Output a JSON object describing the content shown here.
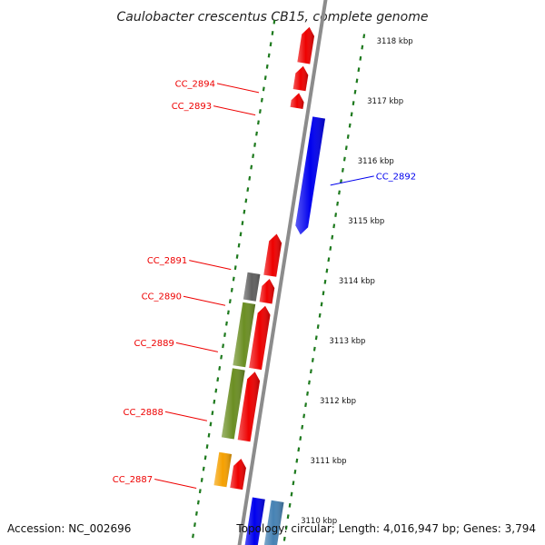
{
  "title": "Caulobacter crescentus CB15, complete genome",
  "footer": {
    "accession": "Accession: NC_002696",
    "summary": "Topology: circular; Length: 4,016,947 bp; Genes: 3,794"
  },
  "colors": {
    "backbone": "#8c8c8c",
    "tick": "#1e7a1e",
    "red": "#ee0000",
    "blue": "#0000ee",
    "olive": "#6b8e23",
    "gray": "#606060",
    "orange": "#f5a000",
    "steelblue": "#4682b4"
  },
  "scale": [
    {
      "label": "3118 kbp",
      "kbp": 3118
    },
    {
      "label": "3117 kbp",
      "kbp": 3117
    },
    {
      "label": "3116 kbp",
      "kbp": 3116
    },
    {
      "label": "3115 kbp",
      "kbp": 3115
    },
    {
      "label": "3114 kbp",
      "kbp": 3114
    },
    {
      "label": "3113 kbp",
      "kbp": 3113
    },
    {
      "label": "3112 kbp",
      "kbp": 3112
    },
    {
      "label": "3111 kbp",
      "kbp": 3111
    },
    {
      "label": "3110 kbp",
      "kbp": 3110
    }
  ],
  "genes": [
    {
      "id": "g-top",
      "label": "",
      "color": "red",
      "strand": "outer",
      "start": 3117.6,
      "end": 3118.2,
      "dir": "up"
    },
    {
      "id": "cc2894",
      "label": "CC_2894",
      "color": "red",
      "strand": "outer",
      "start": 3117.15,
      "end": 3117.55,
      "dir": "up"
    },
    {
      "id": "cc2893",
      "label": "CC_2893",
      "color": "red",
      "strand": "outer",
      "start": 3116.85,
      "end": 3117.1,
      "dir": "up"
    },
    {
      "id": "cc2892",
      "label": "CC_2892",
      "color": "blue",
      "strand": "inner",
      "start": 3114.8,
      "end": 3116.75,
      "dir": "down"
    },
    {
      "id": "cc2891",
      "label": "CC_2891",
      "color": "red",
      "strand": "outer",
      "start": 3114.05,
      "end": 3114.75,
      "dir": "up"
    },
    {
      "id": "cc2890",
      "label": "CC_2890",
      "color": "red",
      "strand": "outer",
      "start": 3113.6,
      "end": 3114.0,
      "dir": "up"
    },
    {
      "id": "cc2890b",
      "label": "",
      "color": "gray",
      "strand": "farouter",
      "start": 3113.6,
      "end": 3114.05,
      "dir": "none"
    },
    {
      "id": "cc2889",
      "label": "CC_2889",
      "color": "red",
      "strand": "outer",
      "start": 3112.5,
      "end": 3113.55,
      "dir": "up"
    },
    {
      "id": "cc2889b",
      "label": "",
      "color": "olive",
      "strand": "farouter",
      "start": 3112.5,
      "end": 3113.55,
      "dir": "none"
    },
    {
      "id": "cc2888",
      "label": "CC_2888",
      "color": "red",
      "strand": "outer",
      "start": 3111.3,
      "end": 3112.45,
      "dir": "up"
    },
    {
      "id": "cc2888b",
      "label": "",
      "color": "olive",
      "strand": "farouter",
      "start": 3111.3,
      "end": 3112.45,
      "dir": "none"
    },
    {
      "id": "cc2887",
      "label": "CC_2887",
      "color": "red",
      "strand": "outer",
      "start": 3110.5,
      "end": 3111.0,
      "dir": "up"
    },
    {
      "id": "cc2887b",
      "label": "",
      "color": "orange",
      "strand": "farouter",
      "start": 3110.5,
      "end": 3111.05,
      "dir": "none"
    },
    {
      "id": "g-bot1",
      "label": "",
      "color": "blue",
      "strand": "inner",
      "start": 3109.5,
      "end": 3110.4,
      "dir": "none"
    },
    {
      "id": "g-bot2",
      "label": "",
      "color": "steelblue",
      "strand": "farinner",
      "start": 3109.5,
      "end": 3110.4,
      "dir": "none"
    }
  ]
}
